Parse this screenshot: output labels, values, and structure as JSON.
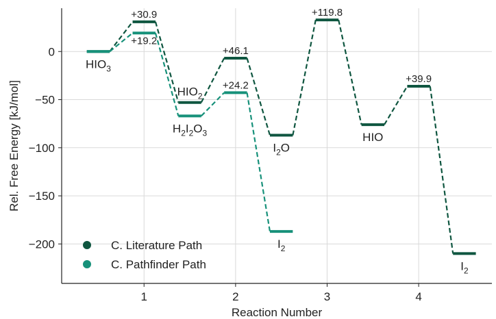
{
  "chart_data": {
    "type": "line",
    "xlabel": "Reaction Number",
    "ylabel": "Rel. Free Energy [kJ/mol]",
    "xlim": [
      0.1,
      4.8
    ],
    "ylim": [
      -241,
      45
    ],
    "x_ticks": [
      1,
      2,
      3,
      4
    ],
    "x_tick_labels": [
      "1",
      "2",
      "3",
      "4"
    ],
    "y_ticks": [
      0,
      -50,
      -100,
      -150,
      -200
    ],
    "y_tick_labels": [
      "0",
      "−50",
      "−100",
      "−150",
      "−200"
    ],
    "grid": true,
    "legend_position": "bottom-left",
    "series": [
      {
        "name": "C. Literature Path",
        "color": "#0f5640",
        "levels": [
          {
            "x": 0.5,
            "y": 0
          },
          {
            "x": 1.0,
            "y": 30.9
          },
          {
            "x": 1.5,
            "y": -53
          },
          {
            "x": 2.0,
            "y": -6.9
          },
          {
            "x": 2.5,
            "y": -87
          },
          {
            "x": 3.0,
            "y": 32.8
          },
          {
            "x": 3.5,
            "y": -76
          },
          {
            "x": 4.0,
            "y": -36.1
          },
          {
            "x": 4.5,
            "y": -210
          }
        ]
      },
      {
        "name": "C. Pathfinder Path",
        "color": "#17917a",
        "levels": [
          {
            "x": 0.5,
            "y": 0
          },
          {
            "x": 1.0,
            "y": 19.2
          },
          {
            "x": 1.5,
            "y": -67
          },
          {
            "x": 2.0,
            "y": -42.8
          },
          {
            "x": 2.5,
            "y": -187
          }
        ]
      }
    ],
    "barrier_labels": [
      {
        "text": "+30.9",
        "x": 1.0,
        "y": 30.9,
        "pos": "above"
      },
      {
        "text": "+19.2",
        "x": 1.0,
        "y": 19.2,
        "pos": "below"
      },
      {
        "text": "+46.1",
        "x": 2.0,
        "y": -6.9,
        "pos": "above"
      },
      {
        "text": "+24.2",
        "x": 2.0,
        "y": -42.8,
        "pos": "above"
      },
      {
        "text": "+119.8",
        "x": 3.0,
        "y": 32.8,
        "pos": "above"
      },
      {
        "text": "+39.9",
        "x": 4.0,
        "y": -36.1,
        "pos": "above"
      }
    ],
    "species_labels": [
      {
        "base": "HIO",
        "sub": "3",
        "x": 0.5,
        "y": 0,
        "pos": "below"
      },
      {
        "base": "HIO",
        "sub": "2",
        "x": 1.5,
        "y": -53,
        "pos": "above"
      },
      {
        "parts": [
          [
            "H",
            ""
          ],
          [
            "2",
            "sub"
          ],
          [
            "I",
            ""
          ],
          [
            "2",
            "sub"
          ],
          [
            "O",
            ""
          ],
          [
            "3",
            "sub"
          ]
        ],
        "x": 1.5,
        "y": -67,
        "pos": "below"
      },
      {
        "parts": [
          [
            "I",
            ""
          ],
          [
            "2",
            "sub"
          ],
          [
            "O",
            ""
          ]
        ],
        "x": 2.5,
        "y": -87,
        "pos": "below"
      },
      {
        "base": "HIO",
        "sub": "",
        "x": 3.5,
        "y": -76,
        "pos": "below"
      },
      {
        "base": "I",
        "sub": "2",
        "x": 2.5,
        "y": -187,
        "pos": "below"
      },
      {
        "base": "I",
        "sub": "2",
        "x": 4.5,
        "y": -210,
        "pos": "below"
      }
    ]
  }
}
